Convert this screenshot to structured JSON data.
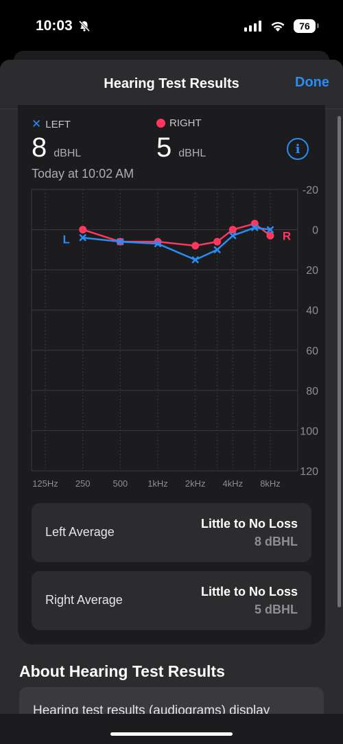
{
  "status_bar": {
    "time": "10:03",
    "battery": "76",
    "icons": [
      "bell-slash-icon",
      "cellular-signal-icon",
      "wifi-icon",
      "battery-icon"
    ]
  },
  "nav": {
    "title": "Hearing Test Results",
    "done_label": "Done",
    "accent": "#2a8cf5"
  },
  "summary": {
    "left_legend": "LEFT",
    "right_legend": "RIGHT",
    "left_value": "8",
    "left_unit": "dBHL",
    "right_value": "5",
    "right_unit": "dBHL",
    "timestamp": "Today at 10:02 AM"
  },
  "chart_data": {
    "type": "line",
    "categories": [
      "125Hz",
      "250",
      "500",
      "1kHz",
      "2kHz",
      "4kHz",
      "8kHz"
    ],
    "x": [
      125,
      250,
      500,
      1000,
      2000,
      3000,
      4000,
      6000,
      8000
    ],
    "ylim": [
      -20,
      120
    ],
    "y_inverted": true,
    "y_ticks": [
      "-20",
      "0",
      "20",
      "40",
      "60",
      "80",
      "100",
      "120"
    ],
    "grid": true,
    "series": [
      {
        "name": "L",
        "color": "#2a8cf5",
        "marker": "x",
        "x": [
          250,
          500,
          1000,
          2000,
          3000,
          4000,
          6000,
          8000
        ],
        "values": [
          4,
          6,
          7,
          15,
          10,
          3,
          -1,
          0
        ]
      },
      {
        "name": "R",
        "color": "#ff375f",
        "marker": "circle",
        "x": [
          250,
          500,
          1000,
          2000,
          3000,
          4000,
          6000,
          8000
        ],
        "values": [
          0,
          6,
          6,
          8,
          6,
          0,
          -3,
          3
        ]
      }
    ]
  },
  "averages": [
    {
      "label": "Left Average",
      "status": "Little to No Loss",
      "value": "8 dBHL"
    },
    {
      "label": "Right Average",
      "status": "Little to No Loss",
      "value": "5 dBHL"
    }
  ],
  "about": {
    "title": "About Hearing Test Results",
    "text": "Hearing test results (audiograms) display"
  }
}
